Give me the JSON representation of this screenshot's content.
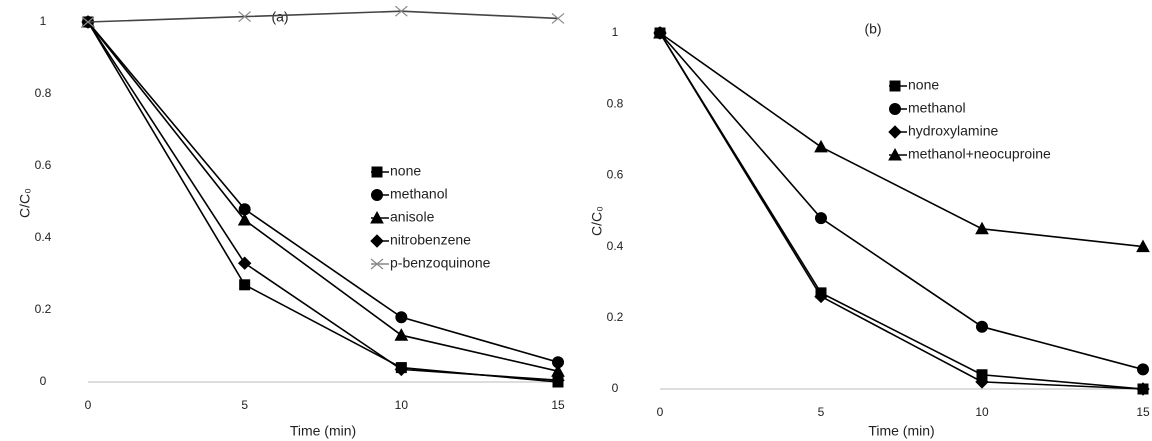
{
  "chart_data": [
    {
      "type": "line",
      "title": "(a)",
      "x_label": "Time (min)",
      "y_label": "C/C₀",
      "x": [
        0,
        5,
        10,
        15
      ],
      "xlim": [
        0,
        15
      ],
      "xticks": [
        0,
        5,
        10,
        15
      ],
      "ylim": [
        0,
        1.05
      ],
      "yticks": [
        0,
        0.2,
        0.4,
        0.6,
        0.8,
        1
      ],
      "series": [
        {
          "name": "none",
          "color": "#000000",
          "marker": "square",
          "values": [
            1,
            0.27,
            0.04,
            0
          ]
        },
        {
          "name": "methanol",
          "color": "#000000",
          "marker": "circle",
          "values": [
            1,
            0.48,
            0.18,
            0.055
          ]
        },
        {
          "name": "anisole",
          "color": "#000000",
          "marker": "triangle",
          "values": [
            1,
            0.45,
            0.13,
            0.03
          ]
        },
        {
          "name": "nitrobenzene",
          "color": "#000000",
          "marker": "diamond",
          "values": [
            1,
            0.33,
            0.035,
            0.005
          ]
        },
        {
          "name": "p-benzoquinone",
          "color": "#000000",
          "marker": "x",
          "values": [
            1,
            1.015,
            1.03,
            1.01
          ]
        }
      ]
    },
    {
      "type": "line",
      "title": "(b)",
      "x_label": "Time (min)",
      "y_label": "C/C₀",
      "x": [
        0,
        5,
        10,
        15
      ],
      "xlim": [
        0,
        15
      ],
      "xticks": [
        0,
        5,
        10,
        15
      ],
      "ylim": [
        0,
        1
      ],
      "yticks": [
        0,
        0.2,
        0.4,
        0.6,
        0.8,
        1
      ],
      "series": [
        {
          "name": "none",
          "color": "#000000",
          "marker": "square",
          "values": [
            1,
            0.27,
            0.04,
            0
          ]
        },
        {
          "name": "methanol",
          "color": "#000000",
          "marker": "circle",
          "values": [
            1,
            0.48,
            0.175,
            0.055
          ]
        },
        {
          "name": "hydroxylamine",
          "color": "#000000",
          "marker": "diamond",
          "values": [
            1,
            0.26,
            0.02,
            0
          ]
        },
        {
          "name": "methanol+neocuproine",
          "color": "#000000",
          "marker": "triangle",
          "values": [
            1,
            0.68,
            0.45,
            0.4
          ]
        }
      ]
    }
  ]
}
